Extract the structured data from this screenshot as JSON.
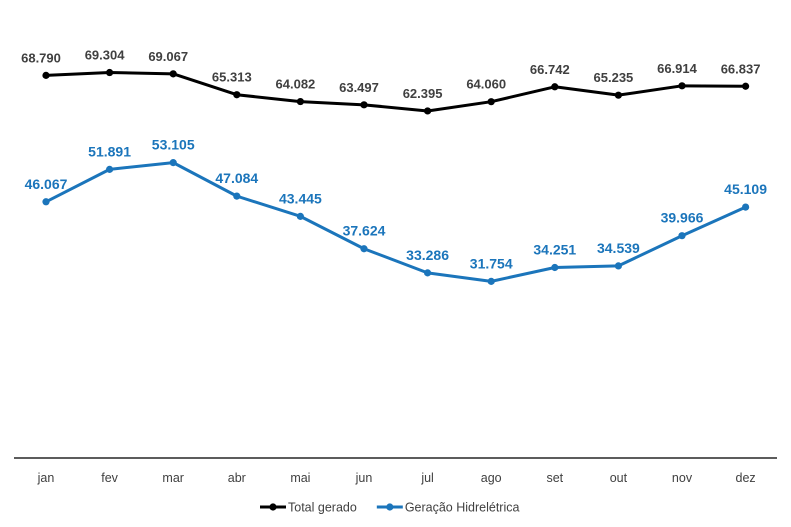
{
  "chart_data": {
    "type": "line",
    "title": "",
    "xlabel": "",
    "ylabel": "",
    "ylim": [
      0,
      82
    ],
    "grid": false,
    "legend_position": "bottom",
    "categories": [
      "jan",
      "fev",
      "mar",
      "abr",
      "mai",
      "jun",
      "jul",
      "ago",
      "set",
      "out",
      "nov",
      "dez"
    ],
    "series": [
      {
        "name": "Total gerado",
        "color": "#000000",
        "label_color": "#404040",
        "values": [
          68.79,
          69.304,
          69.067,
          65.313,
          64.082,
          63.497,
          62.395,
          64.06,
          66.742,
          65.235,
          66.914,
          66.837
        ],
        "labels": [
          "68.790",
          "69.304",
          "69.067",
          "65.313",
          "64.082",
          "63.497",
          "62.395",
          "64.060",
          "66.742",
          "65.235",
          "66.914",
          "66.837"
        ]
      },
      {
        "name": "Geração Hidrelétrica",
        "color": "#1b75bb",
        "label_color": "#1b75bb",
        "values": [
          46.067,
          51.891,
          53.105,
          47.084,
          43.445,
          37.624,
          33.286,
          31.754,
          34.251,
          34.539,
          39.966,
          45.109
        ],
        "labels": [
          "46.067",
          "51.891",
          "53.105",
          "47.084",
          "43.445",
          "37.624",
          "33.286",
          "31.754",
          "34.251",
          "34.539",
          "39.966",
          "45.109"
        ]
      }
    ]
  }
}
